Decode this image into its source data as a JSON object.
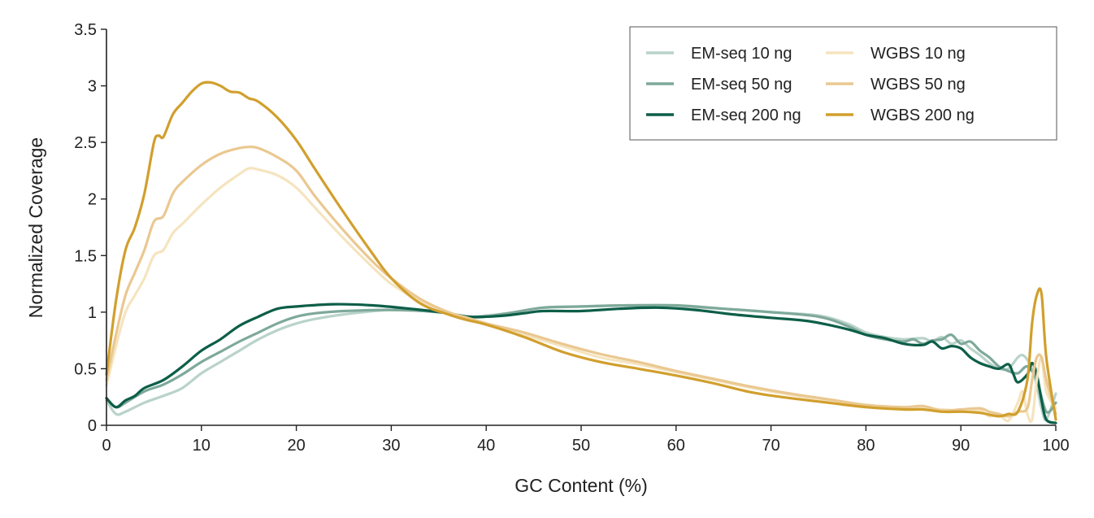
{
  "chart_data": {
    "type": "line",
    "xlabel": "GC Content (%)",
    "ylabel": "Normalized Coverage",
    "xlim": [
      0,
      100
    ],
    "ylim": [
      0,
      3.5
    ],
    "xticks": [
      0,
      10,
      20,
      30,
      40,
      50,
      60,
      70,
      80,
      90,
      100
    ],
    "yticks": [
      0,
      0.5,
      1,
      1.5,
      2,
      2.5,
      3,
      3.5
    ],
    "ytick_labels": [
      "0",
      "0.5",
      "1",
      "1.5",
      "2",
      "2.5",
      "3",
      "3.5"
    ],
    "grid": false,
    "legend": {
      "position": "top-right",
      "columns": 2
    },
    "series": [
      {
        "name": "EM-seq 10 ng",
        "color": "#b9d3c9",
        "points": [
          [
            0,
            0.22
          ],
          [
            1,
            0.1
          ],
          [
            2,
            0.12
          ],
          [
            4,
            0.2
          ],
          [
            6,
            0.26
          ],
          [
            8,
            0.33
          ],
          [
            10,
            0.46
          ],
          [
            12,
            0.56
          ],
          [
            14,
            0.66
          ],
          [
            16,
            0.76
          ],
          [
            18,
            0.84
          ],
          [
            20,
            0.9
          ],
          [
            22,
            0.94
          ],
          [
            25,
            0.98
          ],
          [
            30,
            1.02
          ],
          [
            35,
            1.0
          ],
          [
            38,
            0.96
          ],
          [
            40,
            0.97
          ],
          [
            43,
            1.0
          ],
          [
            46,
            1.04
          ],
          [
            50,
            1.05
          ],
          [
            55,
            1.06
          ],
          [
            60,
            1.05
          ],
          [
            65,
            1.03
          ],
          [
            70,
            1.0
          ],
          [
            75,
            0.97
          ],
          [
            78,
            0.9
          ],
          [
            80,
            0.82
          ],
          [
            82,
            0.78
          ],
          [
            84,
            0.76
          ],
          [
            86,
            0.77
          ],
          [
            87,
            0.74
          ],
          [
            88,
            0.78
          ],
          [
            89,
            0.72
          ],
          [
            90,
            0.75
          ],
          [
            91,
            0.68
          ],
          [
            92,
            0.62
          ],
          [
            93,
            0.55
          ],
          [
            94,
            0.5
          ],
          [
            95,
            0.5
          ],
          [
            96,
            0.6
          ],
          [
            96.5,
            0.62
          ],
          [
            97,
            0.58
          ],
          [
            97.5,
            0.5
          ],
          [
            98,
            0.35
          ],
          [
            98.5,
            0.15
          ],
          [
            99,
            0.05
          ],
          [
            100,
            0.28
          ]
        ]
      },
      {
        "name": "EM-seq 50 ng",
        "color": "#7ea99a",
        "points": [
          [
            0,
            0.24
          ],
          [
            1,
            0.16
          ],
          [
            2,
            0.2
          ],
          [
            4,
            0.3
          ],
          [
            6,
            0.36
          ],
          [
            8,
            0.45
          ],
          [
            10,
            0.56
          ],
          [
            12,
            0.65
          ],
          [
            14,
            0.74
          ],
          [
            16,
            0.82
          ],
          [
            18,
            0.9
          ],
          [
            20,
            0.96
          ],
          [
            22,
            0.99
          ],
          [
            25,
            1.01
          ],
          [
            30,
            1.02
          ],
          [
            35,
            1.0
          ],
          [
            38,
            0.96
          ],
          [
            40,
            0.96
          ],
          [
            43,
            1.0
          ],
          [
            46,
            1.04
          ],
          [
            50,
            1.05
          ],
          [
            55,
            1.06
          ],
          [
            60,
            1.06
          ],
          [
            65,
            1.03
          ],
          [
            70,
            1.0
          ],
          [
            75,
            0.96
          ],
          [
            78,
            0.88
          ],
          [
            80,
            0.8
          ],
          [
            82,
            0.76
          ],
          [
            84,
            0.74
          ],
          [
            85,
            0.76
          ],
          [
            86,
            0.72
          ],
          [
            87,
            0.75
          ],
          [
            88,
            0.76
          ],
          [
            89,
            0.8
          ],
          [
            90,
            0.72
          ],
          [
            91,
            0.74
          ],
          [
            92,
            0.66
          ],
          [
            93,
            0.6
          ],
          [
            94,
            0.52
          ],
          [
            95,
            0.48
          ],
          [
            96,
            0.46
          ],
          [
            97,
            0.52
          ],
          [
            98,
            0.4
          ],
          [
            99,
            0.12
          ],
          [
            100,
            0.2
          ]
        ]
      },
      {
        "name": "EM-seq 200 ng",
        "color": "#0d5e48",
        "points": [
          [
            0,
            0.24
          ],
          [
            1,
            0.16
          ],
          [
            2,
            0.22
          ],
          [
            3,
            0.26
          ],
          [
            4,
            0.33
          ],
          [
            6,
            0.4
          ],
          [
            8,
            0.52
          ],
          [
            10,
            0.66
          ],
          [
            12,
            0.76
          ],
          [
            14,
            0.88
          ],
          [
            16,
            0.96
          ],
          [
            18,
            1.03
          ],
          [
            20,
            1.05
          ],
          [
            24,
            1.07
          ],
          [
            28,
            1.06
          ],
          [
            32,
            1.03
          ],
          [
            36,
            0.99
          ],
          [
            38,
            0.96
          ],
          [
            40,
            0.96
          ],
          [
            42,
            0.97
          ],
          [
            44,
            0.99
          ],
          [
            46,
            1.01
          ],
          [
            50,
            1.01
          ],
          [
            54,
            1.03
          ],
          [
            58,
            1.04
          ],
          [
            62,
            1.02
          ],
          [
            66,
            0.98
          ],
          [
            70,
            0.95
          ],
          [
            74,
            0.92
          ],
          [
            78,
            0.85
          ],
          [
            80,
            0.8
          ],
          [
            82,
            0.77
          ],
          [
            84,
            0.72
          ],
          [
            86,
            0.71
          ],
          [
            87,
            0.74
          ],
          [
            88,
            0.68
          ],
          [
            89,
            0.7
          ],
          [
            90,
            0.68
          ],
          [
            91,
            0.6
          ],
          [
            92,
            0.55
          ],
          [
            93,
            0.52
          ],
          [
            94,
            0.5
          ],
          [
            95,
            0.54
          ],
          [
            95.5,
            0.46
          ],
          [
            96,
            0.38
          ],
          [
            97,
            0.45
          ],
          [
            97.5,
            0.55
          ],
          [
            98,
            0.45
          ],
          [
            98.5,
            0.22
          ],
          [
            99,
            0.05
          ],
          [
            100,
            0.02
          ]
        ]
      },
      {
        "name": "WGBS 10 ng",
        "color": "#f5e4bf",
        "points": [
          [
            0,
            0.35
          ],
          [
            1,
            0.7
          ],
          [
            2,
            1.0
          ],
          [
            3,
            1.15
          ],
          [
            4,
            1.3
          ],
          [
            5,
            1.5
          ],
          [
            6,
            1.55
          ],
          [
            7,
            1.7
          ],
          [
            8,
            1.78
          ],
          [
            10,
            1.95
          ],
          [
            12,
            2.1
          ],
          [
            14,
            2.22
          ],
          [
            15,
            2.27
          ],
          [
            16,
            2.26
          ],
          [
            18,
            2.21
          ],
          [
            20,
            2.1
          ],
          [
            22,
            1.92
          ],
          [
            25,
            1.65
          ],
          [
            28,
            1.4
          ],
          [
            30,
            1.25
          ],
          [
            33,
            1.1
          ],
          [
            36,
            1.0
          ],
          [
            38,
            0.95
          ],
          [
            40,
            0.9
          ],
          [
            44,
            0.8
          ],
          [
            48,
            0.7
          ],
          [
            52,
            0.6
          ],
          [
            56,
            0.54
          ],
          [
            60,
            0.47
          ],
          [
            64,
            0.4
          ],
          [
            68,
            0.33
          ],
          [
            72,
            0.27
          ],
          [
            76,
            0.22
          ],
          [
            80,
            0.18
          ],
          [
            84,
            0.15
          ],
          [
            86,
            0.15
          ],
          [
            88,
            0.14
          ],
          [
            90,
            0.13
          ],
          [
            92,
            0.13
          ],
          [
            93,
            0.08
          ],
          [
            94,
            0.1
          ],
          [
            95,
            0.04
          ],
          [
            96,
            0.2
          ],
          [
            96.5,
            0.3
          ],
          [
            97,
            0.1
          ],
          [
            97.5,
            0.05
          ],
          [
            98,
            0.4
          ],
          [
            98.5,
            0.6
          ],
          [
            99,
            0.3
          ],
          [
            100,
            0.15
          ]
        ]
      },
      {
        "name": "WGBS 50 ng",
        "color": "#eac891",
        "points": [
          [
            0,
            0.4
          ],
          [
            1,
            0.8
          ],
          [
            2,
            1.15
          ],
          [
            3,
            1.35
          ],
          [
            4,
            1.55
          ],
          [
            5,
            1.8
          ],
          [
            6,
            1.85
          ],
          [
            7,
            2.05
          ],
          [
            8,
            2.15
          ],
          [
            10,
            2.3
          ],
          [
            12,
            2.4
          ],
          [
            14,
            2.45
          ],
          [
            15,
            2.46
          ],
          [
            16,
            2.45
          ],
          [
            18,
            2.37
          ],
          [
            20,
            2.25
          ],
          [
            22,
            2.02
          ],
          [
            25,
            1.72
          ],
          [
            28,
            1.45
          ],
          [
            30,
            1.3
          ],
          [
            33,
            1.12
          ],
          [
            36,
            1.0
          ],
          [
            38,
            0.95
          ],
          [
            40,
            0.9
          ],
          [
            44,
            0.82
          ],
          [
            48,
            0.72
          ],
          [
            52,
            0.63
          ],
          [
            56,
            0.56
          ],
          [
            60,
            0.48
          ],
          [
            64,
            0.41
          ],
          [
            68,
            0.34
          ],
          [
            72,
            0.28
          ],
          [
            76,
            0.23
          ],
          [
            80,
            0.18
          ],
          [
            84,
            0.16
          ],
          [
            86,
            0.17
          ],
          [
            88,
            0.13
          ],
          [
            90,
            0.14
          ],
          [
            92,
            0.15
          ],
          [
            93,
            0.12
          ],
          [
            94,
            0.1
          ],
          [
            95,
            0.08
          ],
          [
            96,
            0.12
          ],
          [
            97,
            0.15
          ],
          [
            97.5,
            0.4
          ],
          [
            98,
            0.6
          ],
          [
            98.5,
            0.6
          ],
          [
            99,
            0.4
          ],
          [
            100,
            0.1
          ]
        ]
      },
      {
        "name": "WGBS 200 ng",
        "color": "#d19f2d",
        "points": [
          [
            0,
            0.45
          ],
          [
            1,
            1.1
          ],
          [
            2,
            1.55
          ],
          [
            3,
            1.75
          ],
          [
            4,
            2.05
          ],
          [
            5,
            2.5
          ],
          [
            5.5,
            2.56
          ],
          [
            6,
            2.55
          ],
          [
            7,
            2.75
          ],
          [
            8,
            2.85
          ],
          [
            9,
            2.95
          ],
          [
            10,
            3.02
          ],
          [
            11,
            3.03
          ],
          [
            12,
            3.0
          ],
          [
            13,
            2.95
          ],
          [
            14,
            2.94
          ],
          [
            15,
            2.89
          ],
          [
            16,
            2.86
          ],
          [
            18,
            2.72
          ],
          [
            20,
            2.52
          ],
          [
            22,
            2.26
          ],
          [
            25,
            1.88
          ],
          [
            28,
            1.52
          ],
          [
            30,
            1.3
          ],
          [
            33,
            1.08
          ],
          [
            36,
            0.98
          ],
          [
            38,
            0.93
          ],
          [
            40,
            0.89
          ],
          [
            44,
            0.78
          ],
          [
            48,
            0.65
          ],
          [
            52,
            0.56
          ],
          [
            56,
            0.5
          ],
          [
            60,
            0.44
          ],
          [
            64,
            0.37
          ],
          [
            68,
            0.29
          ],
          [
            72,
            0.24
          ],
          [
            76,
            0.2
          ],
          [
            80,
            0.16
          ],
          [
            84,
            0.14
          ],
          [
            86,
            0.14
          ],
          [
            88,
            0.12
          ],
          [
            90,
            0.12
          ],
          [
            92,
            0.11
          ],
          [
            94,
            0.08
          ],
          [
            95,
            0.1
          ],
          [
            96,
            0.12
          ],
          [
            97,
            0.4
          ],
          [
            97.5,
            0.9
          ],
          [
            98,
            1.15
          ],
          [
            98.5,
            1.16
          ],
          [
            99,
            0.6
          ],
          [
            100,
            0.05
          ]
        ]
      }
    ]
  }
}
